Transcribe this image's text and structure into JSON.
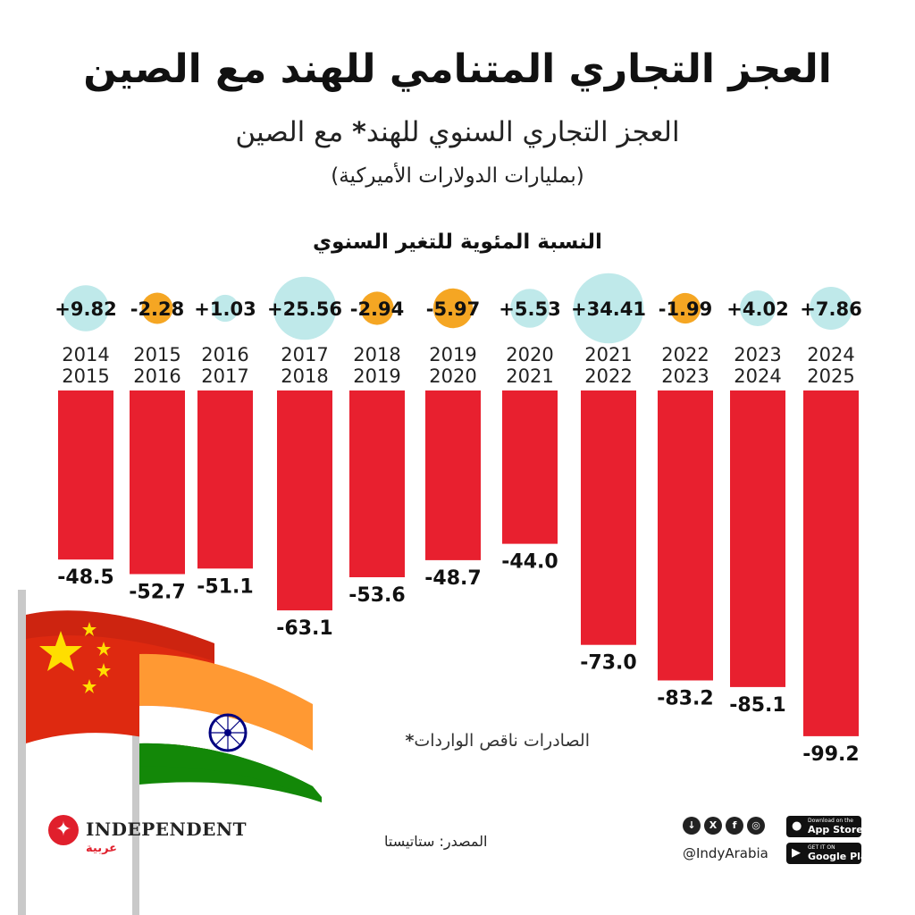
{
  "title": "العجز التجاري المتنامي للهند مع الصين",
  "subtitle": "العجز التجاري السنوي للهند",
  "subtitle_star": "*",
  "subtitle_end": "مع الصين",
  "unit_note": "(بمليارات الدولارات الأميركية)",
  "pct_change_label": "النسبة المئوية للتغير السنوي",
  "footnote": "الصادرات ناقص الواردات",
  "footnote_star": "*",
  "source": "المصدر: ستاتيستا",
  "brand": {
    "logo_text": "INDEPENDENT",
    "logo_sub": "عربية",
    "handle": "@IndyArabia",
    "app_store_small": "Download on the",
    "app_store": "App Store",
    "google_play_small": "GET IT ON",
    "google_play": "Google Play"
  },
  "colors": {
    "bar": "#e8202f",
    "positive_bubble": "#bfe9ea",
    "negative_bubble": "#f5a623",
    "flag_red": "#de2910",
    "flag_yellow": "#ffde00",
    "saffron": "#ff9933",
    "india_green": "#138808",
    "chakra": "#000080"
  },
  "chart_data": {
    "type": "bar",
    "title": "العجز التجاري السنوي للهند مع الصين",
    "ylabel": "بمليارات الدولارات الأميركية",
    "ylim": [
      -100,
      0
    ],
    "categories": [
      [
        "2014",
        "2015"
      ],
      [
        "2015",
        "2016"
      ],
      [
        "2016",
        "2017"
      ],
      [
        "2017",
        "2018"
      ],
      [
        "2018",
        "2019"
      ],
      [
        "2019",
        "2020"
      ],
      [
        "2020",
        "2021"
      ],
      [
        "2021",
        "2022"
      ],
      [
        "2022",
        "2023"
      ],
      [
        "2023",
        "2024"
      ],
      [
        "2024",
        "2025"
      ]
    ],
    "values": [
      -48.5,
      -52.7,
      -51.1,
      -63.1,
      -53.6,
      -48.7,
      -44.0,
      -73.0,
      -83.2,
      -85.1,
      -99.2
    ],
    "value_labels": [
      "-48.5",
      "-52.7",
      "-51.1",
      "-63.1",
      "-53.6",
      "-48.7",
      "-44.0",
      "-73.0",
      "-83.2",
      "-85.1",
      "-99.2"
    ],
    "pct_change": [
      9.82,
      -2.28,
      1.03,
      25.56,
      -2.94,
      -5.97,
      5.53,
      34.41,
      -1.99,
      4.02,
      7.86
    ],
    "pct_change_labels": [
      "+9.82",
      "-2.28",
      "+1.03",
      "+25.56",
      "-2.94",
      "-5.97",
      "+5.53",
      "+34.41",
      "-1.99",
      "+4.02",
      "+7.86"
    ]
  }
}
